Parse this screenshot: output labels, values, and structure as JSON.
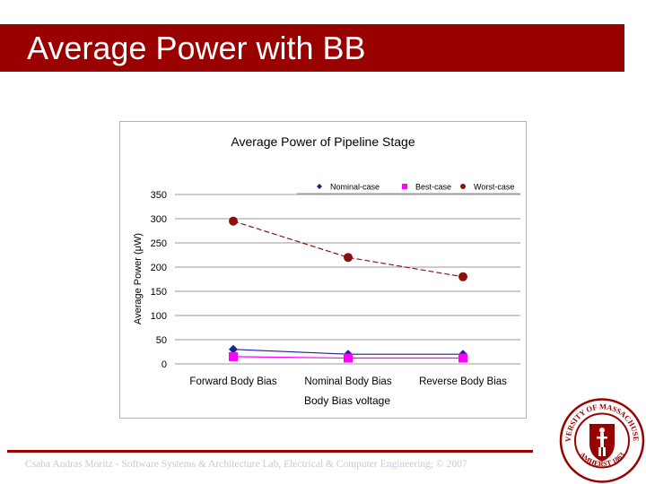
{
  "slide": {
    "title": "Average Power with BB",
    "footer": "Csaba Andras Moritz - Software Systems & Architecture Lab, Electrical & Computer Engineering; © 2007",
    "title_bar_color": "#990000"
  },
  "seal": {
    "top_text": "UNIVERSITY OF MASSACHUSETTS",
    "bottom_text": "AMHERST 1863",
    "color": "#990000"
  },
  "chart_data": {
    "type": "line",
    "title": "Average Power of Pipeline Stage",
    "xlabel": "Body Bias voltage",
    "ylabel": "Average Power (μW)",
    "categories": [
      "Forward Body Bias",
      "Nominal Body Bias",
      "Reverse Body Bias"
    ],
    "ylim": [
      0,
      350
    ],
    "yticks": [
      0,
      50,
      100,
      150,
      200,
      250,
      300,
      350
    ],
    "grid": true,
    "legend_position": "top-right",
    "series": [
      {
        "name": "Nominal-case",
        "values": [
          30,
          20,
          20
        ],
        "color": "#1f1f8f",
        "marker": "diamond"
      },
      {
        "name": "Best-case",
        "values": [
          15,
          12,
          12
        ],
        "color": "#ff00ff",
        "marker": "square"
      },
      {
        "name": "Worst-case",
        "values": [
          295,
          220,
          180
        ],
        "color": "#8b1010",
        "marker": "circle"
      }
    ]
  }
}
